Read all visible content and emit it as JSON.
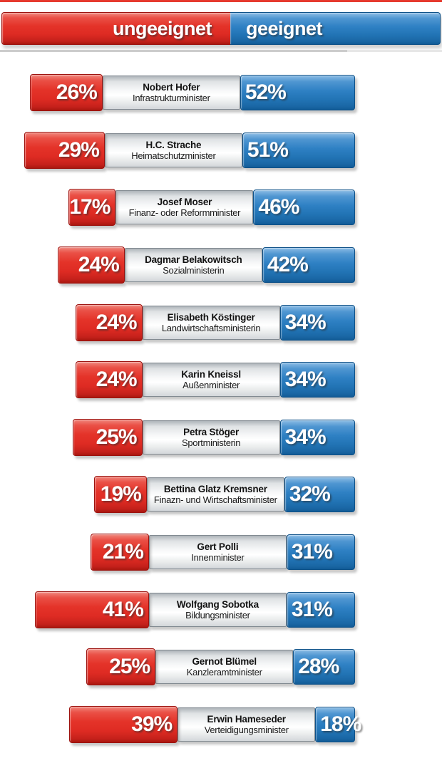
{
  "header": {
    "left_label": "ungeeignet",
    "right_label": "geeignet"
  },
  "colors": {
    "ungeeignet_red": "#e4332a",
    "geeignet_blue": "#2274b5",
    "label_gray": "#eceeef",
    "top_rule_red": "#e63a2e"
  },
  "rows": [
    {
      "name": "Nobert Hofer",
      "role": "Infrastrukturminister",
      "ungeeignet_pct": 26,
      "geeignet_pct": 52,
      "ungeeignet_label": "26%",
      "geeignet_label": "52%"
    },
    {
      "name": "H.C. Strache",
      "role": "Heimatschutzminister",
      "ungeeignet_pct": 29,
      "geeignet_pct": 51,
      "ungeeignet_label": "29%",
      "geeignet_label": "51%"
    },
    {
      "name": "Josef Moser",
      "role": "Finanz- oder Reformminister",
      "ungeeignet_pct": 17,
      "geeignet_pct": 46,
      "ungeeignet_label": "17%",
      "geeignet_label": "46%"
    },
    {
      "name": "Dagmar Belakowitsch",
      "role": "Sozialministerin",
      "ungeeignet_pct": 24,
      "geeignet_pct": 42,
      "ungeeignet_label": "24%",
      "geeignet_label": "42%"
    },
    {
      "name": "Elisabeth Köstinger",
      "role": "Landwirtschaftsministerin",
      "ungeeignet_pct": 24,
      "geeignet_pct": 34,
      "ungeeignet_label": "24%",
      "geeignet_label": "34%"
    },
    {
      "name": "Karin Kneissl",
      "role": "Außenminister",
      "ungeeignet_pct": 24,
      "geeignet_pct": 34,
      "ungeeignet_label": "24%",
      "geeignet_label": "34%"
    },
    {
      "name": "Petra Stöger",
      "role": "Sportministerin",
      "ungeeignet_pct": 25,
      "geeignet_pct": 34,
      "ungeeignet_label": "25%",
      "geeignet_label": "34%"
    },
    {
      "name": "Bettina Glatz Kremsner",
      "role": "Finazn- und Wirtschaftsminister",
      "ungeeignet_pct": 19,
      "geeignet_pct": 32,
      "ungeeignet_label": "19%",
      "geeignet_label": "32%"
    },
    {
      "name": "Gert Polli",
      "role": "Innenminister",
      "ungeeignet_pct": 21,
      "geeignet_pct": 31,
      "ungeeignet_label": "21%",
      "geeignet_label": "31%"
    },
    {
      "name": "Wolfgang Sobotka",
      "role": "Bildungsminister",
      "ungeeignet_pct": 41,
      "geeignet_pct": 31,
      "ungeeignet_label": "41%",
      "geeignet_label": "31%"
    },
    {
      "name": "Gernot Blümel",
      "role": "Kanzleramtminister",
      "ungeeignet_pct": 25,
      "geeignet_pct": 28,
      "ungeeignet_label": "25%",
      "geeignet_label": "28%"
    },
    {
      "name": "Erwin Hameseder",
      "role": "Verteidigungsminister",
      "ungeeignet_pct": 39,
      "geeignet_pct": 18,
      "ungeeignet_label": "39%",
      "geeignet_label": "18%"
    }
  ],
  "chart_data": {
    "type": "bar",
    "orientation": "horizontal-diverging",
    "title": "",
    "legend_position": "top",
    "value_labels": true,
    "grid": false,
    "categories": [
      "Nobert Hofer (Infrastrukturminister)",
      "H.C. Strache (Heimatschutzminister)",
      "Josef Moser (Finanz- oder Reformminister)",
      "Dagmar Belakowitsch (Sozialministerin)",
      "Elisabeth Köstinger (Landwirtschaftsministerin)",
      "Karin Kneissl (Außenminister)",
      "Petra Stöger (Sportministerin)",
      "Bettina Glatz Kremsner (Finazn- und Wirtschaftsminister)",
      "Gert Polli (Innenminister)",
      "Wolfgang Sobotka (Bildungsminister)",
      "Gernot Blümel (Kanzleramtminister)",
      "Erwin Hameseder (Verteidigungsminister)"
    ],
    "series": [
      {
        "name": "ungeeignet",
        "color": "#e4332a",
        "values": [
          26,
          29,
          17,
          24,
          24,
          24,
          25,
          19,
          21,
          41,
          25,
          39
        ]
      },
      {
        "name": "geeignet",
        "color": "#2274b5",
        "values": [
          52,
          51,
          46,
          42,
          34,
          34,
          34,
          32,
          31,
          31,
          28,
          18
        ]
      }
    ]
  }
}
